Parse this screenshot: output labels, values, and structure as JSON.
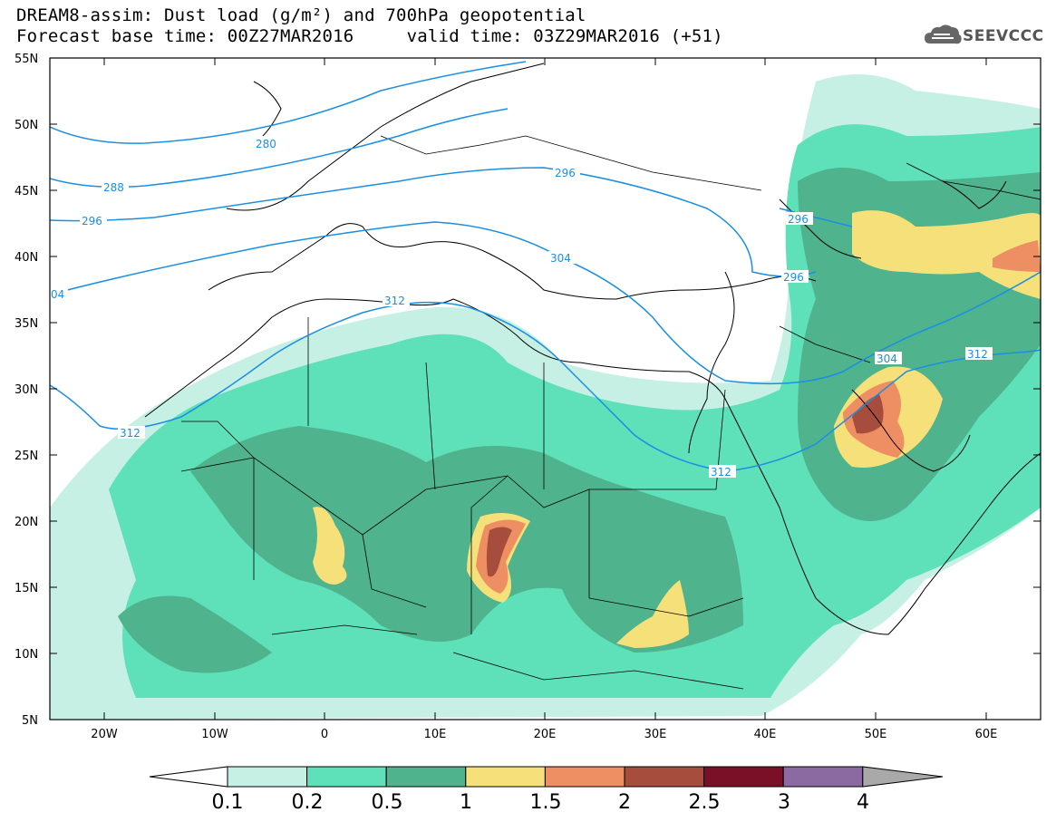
{
  "header": {
    "title_line1": "DREAM8-assim: Dust load (g/m²) and 700hPa geopotential",
    "title_line2": "Forecast base time: 00Z27MAR2016     valid time: 03Z29MAR2016 (+51)",
    "logo_text": "SEEVCCC"
  },
  "map": {
    "lat_labels": [
      "55N",
      "50N",
      "45N",
      "40N",
      "35N",
      "30N",
      "25N",
      "20N",
      "15N",
      "10N",
      "5N"
    ],
    "lon_labels": [
      "20W",
      "10W",
      "0",
      "10E",
      "20E",
      "30E",
      "40E",
      "50E",
      "60E"
    ],
    "colors": {
      "frame": "#000000",
      "land_background": "#ffffff",
      "contour_line": "#1a8fe3",
      "borders": "#000000"
    },
    "isolines": [
      {
        "value": "280",
        "label": "280"
      },
      {
        "value": "288",
        "label": "288"
      },
      {
        "value": "296",
        "label": "296"
      },
      {
        "value": "304",
        "label": "304"
      },
      {
        "value": "312",
        "label": "312"
      },
      {
        "value": "04",
        "label": "04"
      }
    ]
  },
  "colorbar": {
    "labels": [
      "0.1",
      "0.2",
      "0.5",
      "1",
      "1.5",
      "2",
      "2.5",
      "3",
      "4"
    ],
    "colors": [
      "#c6f0e4",
      "#5ee0b8",
      "#4fb38d",
      "#f5e07a",
      "#ee8e63",
      "#a64d3e",
      "#7a0f28",
      "#8a6aa0",
      "#a9a9a9"
    ]
  }
}
